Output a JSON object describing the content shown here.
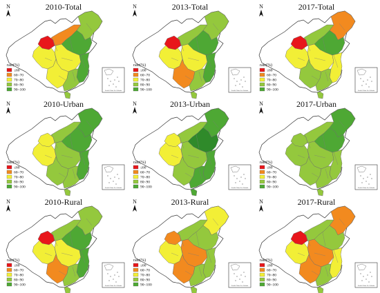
{
  "panels": [
    {
      "title": "2010-Total",
      "levels": {
        "NE": "lg",
        "NCN": "mg",
        "NW": "ye",
        "MONG": "or",
        "CEN": "ye",
        "SW": "ye",
        "S": "lg",
        "E": "mg",
        "Q": "rd"
      }
    },
    {
      "title": "2013-Total",
      "levels": {
        "NE": "lg",
        "NCN": "mg",
        "NW": "ye",
        "MONG": "lg",
        "CEN": "ye",
        "SW": "or",
        "S": "lg",
        "E": "mg",
        "Q": "rd"
      }
    },
    {
      "title": "2017-Total",
      "levels": {
        "NE": "or",
        "NCN": "mg",
        "NW": "ye",
        "MONG": "lg",
        "CEN": "ye",
        "SW": "lg",
        "S": "lg",
        "E": "ye",
        "Q": "rd"
      }
    },
    {
      "title": "2010-Urban",
      "levels": {
        "NE": "mg",
        "NCN": "mg",
        "NW": "ye",
        "MONG": "lg",
        "CEN": "lg",
        "SW": "lg",
        "S": "lg",
        "E": "mg",
        "Q": "ye"
      }
    },
    {
      "title": "2013-Urban",
      "levels": {
        "NE": "mg",
        "NCN": "dg",
        "NW": "ye",
        "MONG": "lg",
        "CEN": "lg",
        "SW": "lg",
        "S": "mg",
        "E": "mg",
        "Q": "ye"
      }
    },
    {
      "title": "2017-Urban",
      "levels": {
        "NE": "mg",
        "NCN": "mg",
        "NW": "lg",
        "MONG": "lg",
        "CEN": "lg",
        "SW": "lg",
        "S": "lg",
        "E": "lg",
        "Q": "lg"
      }
    },
    {
      "title": "2010-Rural",
      "levels": {
        "NE": "lg",
        "NCN": "mg",
        "NW": "ye",
        "MONG": "lg",
        "CEN": "ye",
        "SW": "or",
        "S": "lg",
        "E": "mg",
        "Q": "rd"
      }
    },
    {
      "title": "2013-Rural",
      "levels": {
        "NE": "ye",
        "NCN": "lg",
        "NW": "ye",
        "MONG": "lg",
        "CEN": "or",
        "SW": "or",
        "S": "lg",
        "E": "lg",
        "Q": "or"
      }
    },
    {
      "title": "2017-Rural",
      "levels": {
        "NE": "or",
        "NCN": "lg",
        "NW": "ye",
        "MONG": "lg",
        "CEN": "or",
        "SW": "or",
        "S": "lg",
        "E": "ye",
        "Q": "rd"
      }
    }
  ],
  "legend": {
    "title": "rate(%)",
    "items": [
      {
        "key": "rd",
        "label": "≤60",
        "color": "#e8161b"
      },
      {
        "key": "or",
        "label": "60~70",
        "color": "#f28a1f"
      },
      {
        "key": "ye",
        "label": "70~80",
        "color": "#f2ef36"
      },
      {
        "key": "lg",
        "label": "80~90",
        "color": "#94c83d"
      },
      {
        "key": "mg",
        "label": "90~100",
        "color": "#4ea834"
      }
    ]
  },
  "extra_colors": {
    "dg": "#2f8a2a"
  },
  "north_label": "N",
  "inset_caption": "South China Sea Islands"
}
